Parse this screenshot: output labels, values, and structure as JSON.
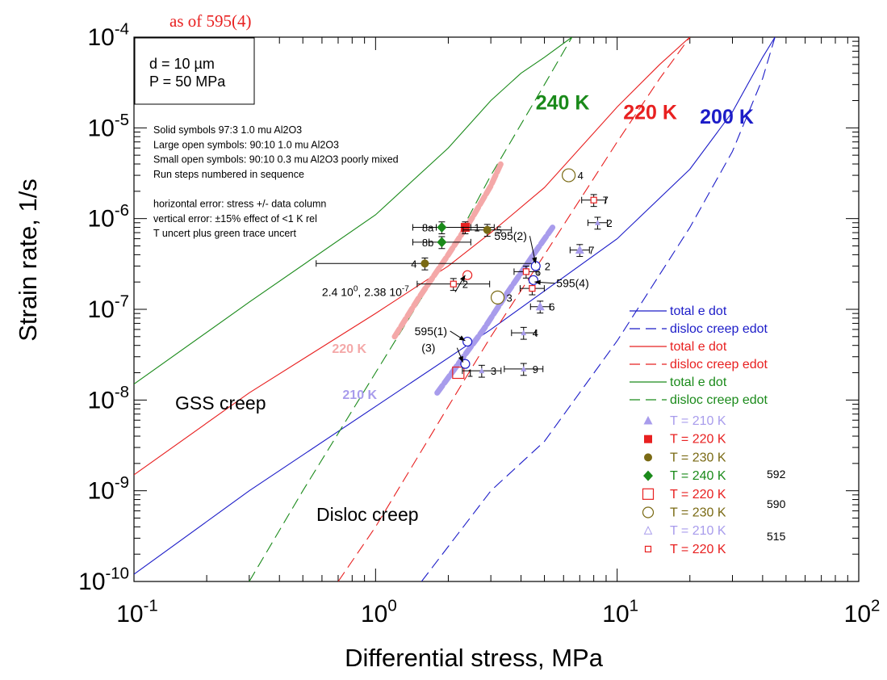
{
  "header_note": "as of 595(4)",
  "chart_data": {
    "type": "scatter",
    "title": "",
    "xlabel": "Differential stress, MPa",
    "ylabel": "Strain rate, 1/s",
    "xscale": "log",
    "yscale": "log",
    "xlim": [
      0.1,
      100
    ],
    "ylim": [
      1e-10,
      0.0001
    ],
    "x_ticks": [
      {
        "value": 0.1,
        "base": "10",
        "exp": "-1"
      },
      {
        "value": 1,
        "base": "10",
        "exp": "0"
      },
      {
        "value": 10,
        "base": "10",
        "exp": "1"
      },
      {
        "value": 100,
        "base": "10",
        "exp": "2"
      }
    ],
    "y_ticks": [
      {
        "value": 1e-10,
        "base": "10",
        "exp": "-10"
      },
      {
        "value": 1e-09,
        "base": "10",
        "exp": "-9"
      },
      {
        "value": 1e-08,
        "base": "10",
        "exp": "-8"
      },
      {
        "value": 1e-07,
        "base": "10",
        "exp": "-7"
      },
      {
        "value": 1e-06,
        "base": "10",
        "exp": "-6"
      },
      {
        "value": 1e-05,
        "base": "10",
        "exp": "-5"
      },
      {
        "value": 0.0001,
        "base": "10",
        "exp": "-4"
      }
    ],
    "params_box": {
      "line1": "d = 10 µm",
      "line2": "P = 50 MPa"
    },
    "notes": [
      "Solid symbols            97:3 1.0 mu Al2O3",
      "Large open symbols:   90:10 1.0 mu Al2O3",
      "Small open symbols:   90:10 0.3 mu Al2O3 poorly mixed",
      "Run steps numbered in sequence",
      "",
      "horizontal error: stress +/- data column",
      "vertical error: ±15% effect of <1 K rel",
      "      T uncert plus green trace uncert"
    ],
    "region_labels": [
      "GSS creep",
      "Disloc creep"
    ],
    "curve_labels": [
      {
        "text": "240 K",
        "x": 4.6,
        "y": 1.6e-05,
        "color": "#1a8a1a"
      },
      {
        "text": "220 K",
        "x": 10.6,
        "y": 1.25e-05,
        "color": "#e82020"
      },
      {
        "text": "200 K",
        "x": 22.0,
        "y": 1.12e-05,
        "color": "#1c1cc8"
      },
      {
        "text": "220 K",
        "x": 0.66,
        "y": 3.3e-08,
        "color": "#f4a8a8"
      },
      {
        "text": "210 K",
        "x": 0.73,
        "y": 1.03e-08,
        "color": "#a89cec"
      }
    ],
    "series": [
      {
        "name": "total e dot",
        "style": "solid",
        "color": "#1c1cc8",
        "x": [
          0.1,
          0.3,
          1,
          3,
          10,
          20,
          30,
          40,
          45
        ],
        "y": [
          1.2e-10,
          1e-09,
          8.5e-09,
          6e-08,
          6e-07,
          3.5e-06,
          1.5e-05,
          6e-05,
          0.0001
        ]
      },
      {
        "name": "disloc creep edot",
        "style": "dashed",
        "color": "#1c1cc8",
        "x": [
          1.55,
          3,
          5,
          10,
          20,
          30,
          40,
          45
        ],
        "y": [
          1e-10,
          1e-09,
          3.5e-09,
          4.5e-08,
          8e-07,
          5.5e-06,
          3.5e-05,
          0.0001
        ]
      },
      {
        "name": "total e dot",
        "style": "solid",
        "color": "#e82020",
        "x": [
          0.1,
          0.3,
          1,
          2,
          3,
          5,
          10,
          15,
          20
        ],
        "y": [
          1.5e-09,
          1.2e-08,
          9e-08,
          3e-07,
          7e-07,
          2.2e-06,
          1.7e-05,
          5e-05,
          0.0001
        ]
      },
      {
        "name": "disloc creep edot",
        "style": "dashed",
        "color": "#e82020",
        "x": [
          0.7,
          1,
          2,
          3,
          5,
          10,
          15,
          20
        ],
        "y": [
          1e-10,
          4e-10,
          8.5e-09,
          5e-08,
          4e-07,
          7e-06,
          3.5e-05,
          0.0001
        ]
      },
      {
        "name": "total e dot",
        "style": "solid",
        "color": "#1a8a1a",
        "x": [
          0.1,
          0.3,
          1,
          2,
          3,
          4,
          5,
          6.5
        ],
        "y": [
          1.5e-08,
          1.2e-07,
          1.1e-06,
          6e-06,
          2e-05,
          4e-05,
          6e-05,
          0.0001
        ]
      },
      {
        "name": "disloc creep edot",
        "style": "dashed",
        "color": "#1a8a1a",
        "x": [
          0.3,
          0.5,
          1,
          2,
          3,
          5,
          6.5
        ],
        "y": [
          1e-10,
          1e-09,
          2e-08,
          4e-07,
          3e-06,
          3e-05,
          0.0001
        ]
      },
      {
        "name": "220 K",
        "style": "trace",
        "color": "#f4a8a8",
        "x": [
          1.2,
          1.5,
          2,
          2.5,
          3,
          3.3
        ],
        "y": [
          5e-08,
          1.3e-07,
          4e-07,
          1e-06,
          2.3e-06,
          4e-06
        ]
      },
      {
        "name": "210 K",
        "style": "trace",
        "color": "#a89cec",
        "x": [
          1.8,
          2.2,
          2.8,
          3.5,
          4.5,
          5.4
        ],
        "y": [
          1.2e-08,
          2.5e-08,
          6e-08,
          1.5e-07,
          4e-07,
          8e-07
        ]
      }
    ],
    "points": [
      {
        "x": 2.35,
        "y": 8e-07,
        "marker": "square-filled",
        "color": "#e82020",
        "label": "1",
        "xerr": 0.12,
        "yerr": 0.15
      },
      {
        "x": 1.88,
        "y": 8e-07,
        "marker": "diamond-filled",
        "color": "#1a8a1a",
        "label": "8a",
        "xerr": 0.12,
        "yerr": 0.15
      },
      {
        "x": 1.88,
        "y": 5.5e-07,
        "marker": "diamond-filled",
        "color": "#1a8a1a",
        "label": "8b",
        "xerr": 0.12,
        "yerr": 0.15
      },
      {
        "x": 2.9,
        "y": 7.5e-07,
        "marker": "circle-filled",
        "color": "#7a6a14",
        "label": "5",
        "xerr": 0.1,
        "yerr": 0.15
      },
      {
        "x": 1.6,
        "y": 3.2e-07,
        "marker": "circle-filled",
        "color": "#7a6a14",
        "label": "4",
        "xerr": 0.45,
        "yerr": 0.15
      },
      {
        "x": 3.2,
        "y": 1.35e-07,
        "marker": "circle-open",
        "color": "#7a6a14",
        "label": "3",
        "size": 16
      },
      {
        "x": 6.3,
        "y": 3e-06,
        "marker": "circle-open",
        "color": "#7a6a14",
        "label": "4",
        "size": 16
      },
      {
        "x": 2.2,
        "y": 2e-08,
        "marker": "square-open",
        "color": "#e82020",
        "label": "1",
        "size": 14
      },
      {
        "x": 8.0,
        "y": 1.6e-06,
        "marker": "square-small",
        "color": "#e82020",
        "label": "7",
        "xerr": 0.05,
        "yerr": 0.15
      },
      {
        "x": 4.2,
        "y": 2.6e-07,
        "marker": "square-small",
        "color": "#e82020",
        "label": "6",
        "xerr": 0.05,
        "yerr": 0.15
      },
      {
        "x": 4.45,
        "y": 1.7e-07,
        "marker": "square-small",
        "color": "#e82020",
        "label": "",
        "xerr": 0.05,
        "yerr": 0.15
      },
      {
        "x": 2.1,
        "y": 1.9e-07,
        "marker": "square-small",
        "color": "#e82020",
        "label": "2",
        "xerr": 0.15,
        "yerr": 0.15
      },
      {
        "x": 8.3,
        "y": 9e-07,
        "marker": "triangle-small",
        "color": "#a89cec",
        "label": "2",
        "xerr": 0.04,
        "yerr": 0.15
      },
      {
        "x": 7.0,
        "y": 4.5e-07,
        "marker": "triangle-filled",
        "color": "#a89cec",
        "label": "7",
        "xerr": 0.04,
        "yerr": 0.15
      },
      {
        "x": 4.8,
        "y": 1.07e-07,
        "marker": "triangle-filled",
        "color": "#a89cec",
        "label": "6",
        "xerr": 0.04,
        "yerr": 0.15
      },
      {
        "x": 4.6,
        "y": 3e-07,
        "marker": "circle-open",
        "color": "#1c1cc8",
        "label": "2",
        "size": 11
      },
      {
        "x": 4.5,
        "y": 2.1e-07,
        "marker": "circle-open",
        "color": "#1c1cc8",
        "label": "",
        "size": 11
      },
      {
        "x": 2.4,
        "y": 4.4e-08,
        "marker": "circle-open",
        "color": "#1c1cc8",
        "label": "",
        "size": 11
      },
      {
        "x": 2.35,
        "y": 2.5e-08,
        "marker": "circle-open",
        "color": "#1c1cc8",
        "label": "",
        "size": 11
      },
      {
        "x": 2.4,
        "y": 2.38e-07,
        "marker": "circle-open",
        "color": "#e82020",
        "label": "",
        "size": 11
      },
      {
        "x": 4.1,
        "y": 5.5e-08,
        "marker": "triangle-small",
        "color": "#a89cec",
        "label": "4",
        "xerr": 0.05,
        "yerr": 0.15
      },
      {
        "x": 2.75,
        "y": 2.1e-08,
        "marker": "triangle-small",
        "color": "#a89cec",
        "label": "3",
        "xerr": 0.08,
        "yerr": 0.15
      },
      {
        "x": 4.1,
        "y": 2.2e-08,
        "marker": "triangle-small",
        "color": "#a89cec",
        "label": "9",
        "xerr": 0.08,
        "yerr": 0.15
      }
    ],
    "annotations": [
      {
        "text": "595(2)",
        "tx": 3.1,
        "ty": 5.8e-07,
        "ax": 4.6,
        "ay": 3.2e-07
      },
      {
        "text": "595(4)",
        "tx": 5.6,
        "ty": 1.75e-07,
        "ax": 4.55,
        "ay": 2e-07
      },
      {
        "text": "595(1)",
        "tx": 1.45,
        "ty": 5.2e-08,
        "ax": 2.35,
        "ay": 4.5e-08
      },
      {
        "text": "(3)",
        "tx": 1.55,
        "ty": 3.4e-08,
        "ax": 2.3,
        "ay": 2.6e-08
      },
      {
        "text": "2.4 10",
        "sup": "0",
        "text2": ", 2.38 10",
        "sup2": "-7",
        "tx": 0.6,
        "ty": 1.4e-07,
        "ax": 2.35,
        "ay": 2.38e-07
      }
    ],
    "legend": {
      "placement": "lower-right",
      "lines": [
        {
          "label": "total e dot",
          "style": "solid",
          "color": "#1c1cc8"
        },
        {
          "label": "disloc creep edot",
          "style": "dashed",
          "color": "#1c1cc8"
        },
        {
          "label": "total e dot",
          "style": "solid",
          "color": "#e82020"
        },
        {
          "label": "disloc creep edot",
          "style": "dashed",
          "color": "#e82020"
        },
        {
          "label": "total e dot",
          "style": "solid",
          "color": "#1a8a1a"
        },
        {
          "label": "disloc creep edot",
          "style": "dashed",
          "color": "#1a8a1a"
        }
      ],
      "markers": [
        {
          "label": "T = 210 K",
          "marker": "triangle-filled",
          "color": "#a89cec",
          "text_color": "#a89cec"
        },
        {
          "label": "T = 220 K",
          "marker": "square-filled",
          "color": "#e82020",
          "text_color": "#e82020"
        },
        {
          "label": "T = 230 K",
          "marker": "circle-filled",
          "color": "#7a6a14",
          "text_color": "#7a6a14"
        },
        {
          "label": "T = 240 K",
          "marker": "diamond-filled",
          "color": "#1a8a1a",
          "text_color": "#1a8a1a"
        },
        {
          "label": "T = 220 K",
          "marker": "square-open",
          "color": "#e82020",
          "text_color": "#e82020"
        },
        {
          "label": "T = 230 K",
          "marker": "circle-open",
          "color": "#7a6a14",
          "text_color": "#7a6a14"
        },
        {
          "label": "T = 210 K",
          "marker": "triangle-open",
          "color": "#a89cec",
          "text_color": "#a89cec"
        },
        {
          "label": "T = 220 K",
          "marker": "square-small",
          "color": "#e82020",
          "text_color": "#e82020"
        }
      ],
      "run_labels": [
        "592",
        "590",
        "515"
      ]
    }
  }
}
